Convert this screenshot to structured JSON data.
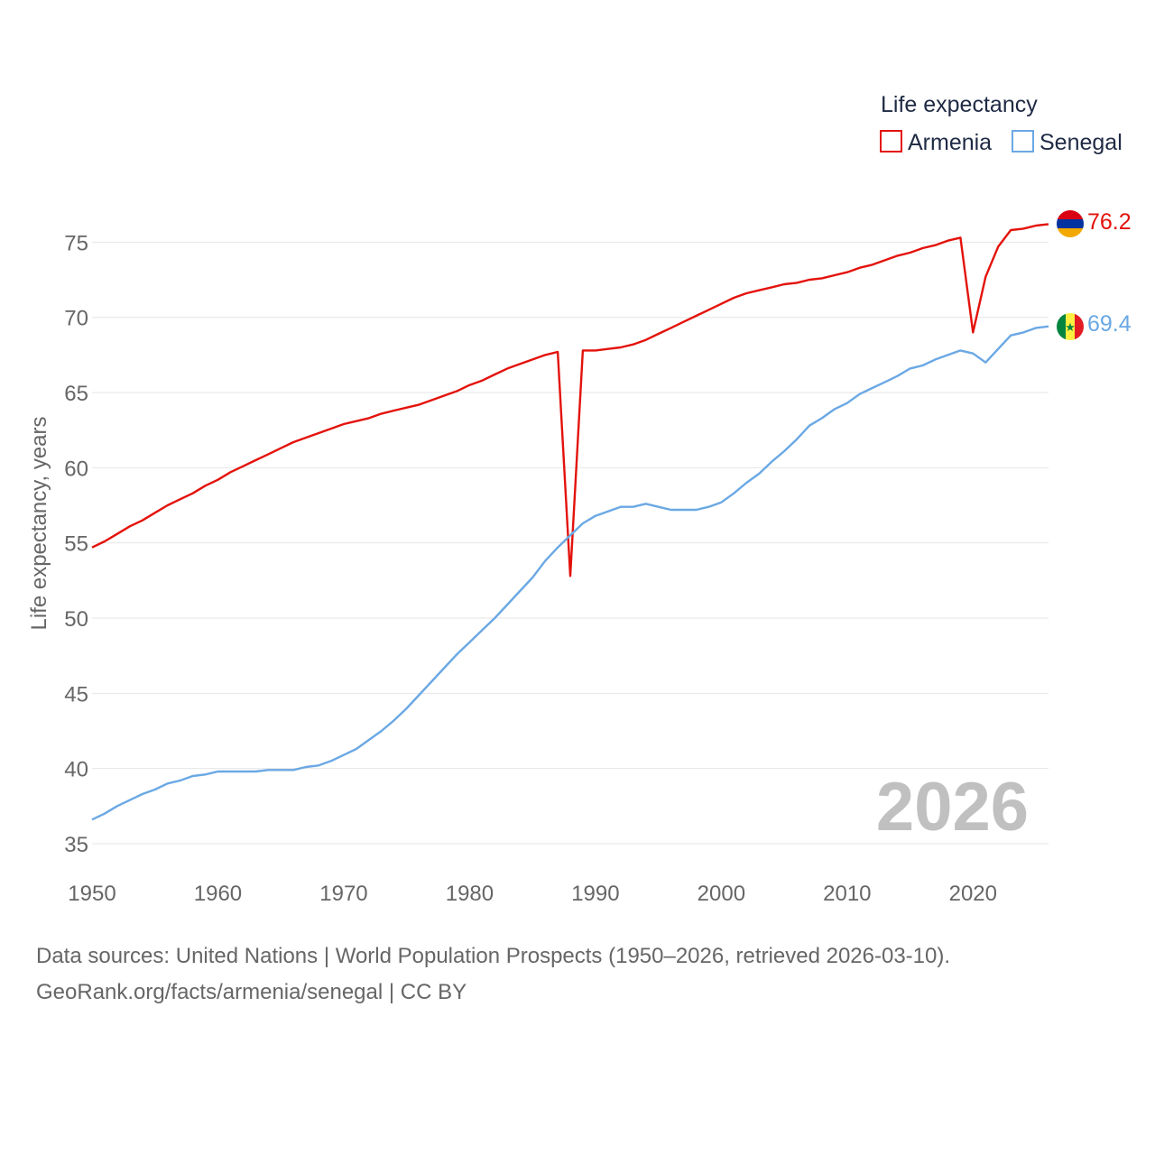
{
  "chart_data": {
    "type": "line",
    "title": "",
    "year_label": "2026",
    "legend_title": "Life expectancy",
    "xlabel": "",
    "ylabel": "Life expectancy, years",
    "xlim": [
      1950,
      2026
    ],
    "ylim": [
      35,
      77
    ],
    "x_ticks": [
      1950,
      1960,
      1970,
      1980,
      1990,
      2000,
      2010,
      2020
    ],
    "y_ticks": [
      35,
      40,
      45,
      50,
      55,
      60,
      65,
      70,
      75
    ],
    "x": [
      1950,
      1951,
      1952,
      1953,
      1954,
      1955,
      1956,
      1957,
      1958,
      1959,
      1960,
      1961,
      1962,
      1963,
      1964,
      1965,
      1966,
      1967,
      1968,
      1969,
      1970,
      1971,
      1972,
      1973,
      1974,
      1975,
      1976,
      1977,
      1978,
      1979,
      1980,
      1981,
      1982,
      1983,
      1984,
      1985,
      1986,
      1987,
      1988,
      1989,
      1990,
      1991,
      1992,
      1993,
      1994,
      1995,
      1996,
      1997,
      1998,
      1999,
      2000,
      2001,
      2002,
      2003,
      2004,
      2005,
      2006,
      2007,
      2008,
      2009,
      2010,
      2011,
      2012,
      2013,
      2014,
      2015,
      2016,
      2017,
      2018,
      2019,
      2020,
      2021,
      2022,
      2023,
      2024,
      2025,
      2026
    ],
    "series": [
      {
        "name": "Armenia",
        "color": "#e3120b",
        "end_label": "76.2",
        "flag": "armenia-flag",
        "values": [
          54.7,
          55.1,
          55.6,
          56.1,
          56.5,
          57.0,
          57.5,
          57.9,
          58.3,
          58.8,
          59.2,
          59.7,
          60.1,
          60.5,
          60.9,
          61.3,
          61.7,
          62.0,
          62.3,
          62.6,
          62.9,
          63.1,
          63.3,
          63.6,
          63.8,
          64.0,
          64.2,
          64.5,
          64.8,
          65.1,
          65.5,
          65.8,
          66.2,
          66.6,
          66.9,
          67.2,
          67.5,
          67.7,
          52.8,
          67.8,
          67.8,
          67.9,
          68.0,
          68.2,
          68.5,
          68.9,
          69.3,
          69.7,
          70.1,
          70.5,
          70.9,
          71.3,
          71.6,
          71.8,
          72.0,
          72.2,
          72.3,
          72.5,
          72.6,
          72.8,
          73.0,
          73.3,
          73.5,
          73.8,
          74.1,
          74.3,
          74.6,
          74.8,
          75.1,
          75.3,
          69.0,
          72.7,
          74.7,
          75.8,
          75.9,
          76.1,
          76.2
        ]
      },
      {
        "name": "Senegal",
        "color": "#6aa8e4",
        "end_label": "69.4",
        "flag": "senegal-flag",
        "values": [
          36.6,
          37.0,
          37.5,
          37.9,
          38.3,
          38.6,
          39.0,
          39.2,
          39.5,
          39.6,
          39.8,
          39.8,
          39.8,
          39.8,
          39.9,
          39.9,
          39.9,
          40.1,
          40.2,
          40.5,
          40.9,
          41.3,
          41.9,
          42.5,
          43.2,
          44.0,
          44.9,
          45.8,
          46.7,
          47.6,
          48.4,
          49.2,
          50.0,
          50.9,
          51.8,
          52.7,
          53.8,
          54.7,
          55.5,
          56.3,
          56.8,
          57.1,
          57.4,
          57.4,
          57.6,
          57.4,
          57.2,
          57.2,
          57.2,
          57.4,
          57.7,
          58.3,
          59.0,
          59.6,
          60.4,
          61.1,
          61.9,
          62.8,
          63.3,
          63.9,
          64.3,
          64.9,
          65.3,
          65.7,
          66.1,
          66.6,
          66.8,
          67.2,
          67.5,
          67.8,
          67.6,
          67.0,
          67.9,
          68.8,
          69.0,
          69.3,
          69.4
        ]
      }
    ]
  },
  "footer": {
    "line1": "Data sources: United Nations | World Population Prospects (1950–2026, retrieved 2026-03-10).",
    "line2": "GeoRank.org/facts/armenia/senegal | CC BY"
  }
}
